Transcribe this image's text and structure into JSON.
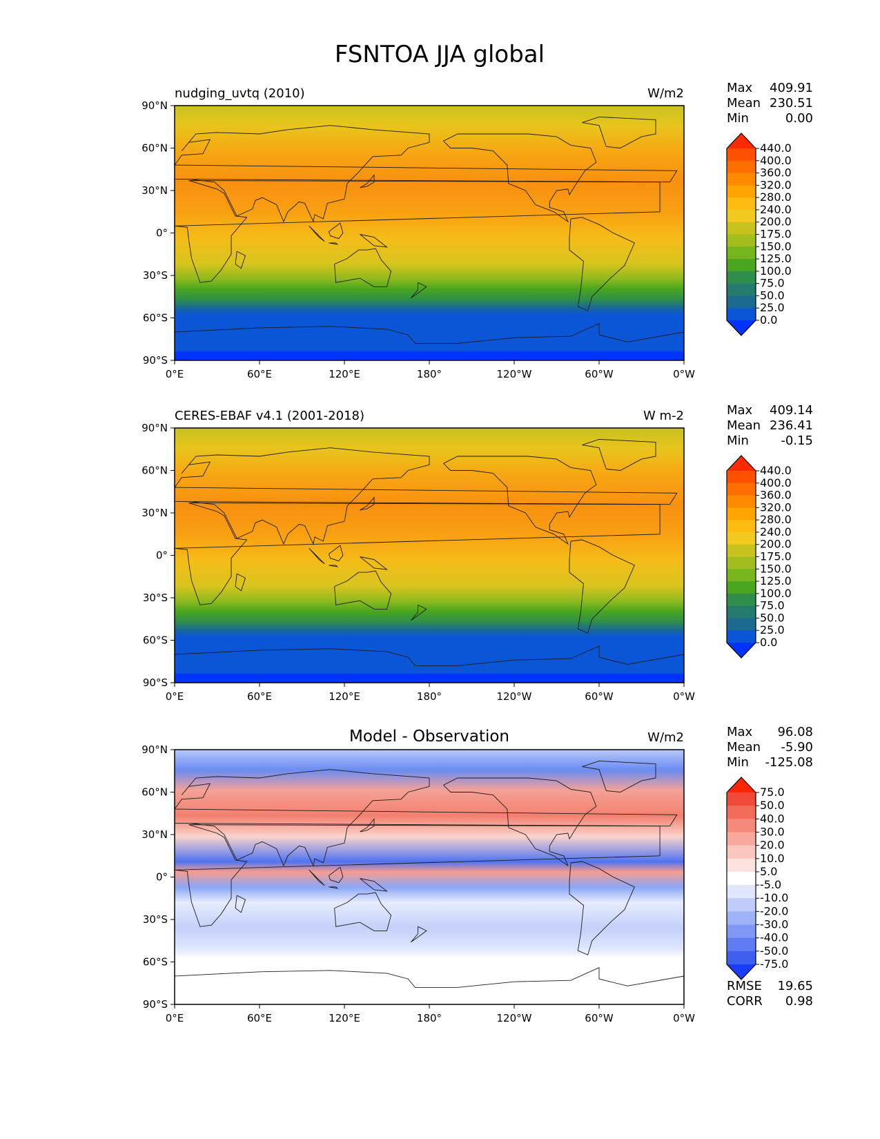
{
  "figure": {
    "title": "FSNTOA JJA global"
  },
  "axes": {
    "lat_ticks": [
      "90°N",
      "60°N",
      "30°N",
      "0°",
      "30°S",
      "60°S",
      "90°S"
    ],
    "lon_ticks": [
      "0°E",
      "60°E",
      "120°E",
      "180°",
      "120°W",
      "60°W",
      "0°W"
    ]
  },
  "panels": [
    {
      "id": "model",
      "left_title": "nudging_uvtq (2010)",
      "center_title": "",
      "units": "W/m2",
      "stats": [
        {
          "label": "Max",
          "value": "409.91"
        },
        {
          "label": "Mean",
          "value": "230.51"
        },
        {
          "label": "Min",
          "value": "0.00"
        }
      ],
      "colorbar": {
        "levels": [
          "440.0",
          "400.0",
          "360.0",
          "320.0",
          "280.0",
          "240.0",
          "200.0",
          "175.0",
          "150.0",
          "125.0",
          "100.0",
          "75.0",
          "50.0",
          "25.0",
          "0.0"
        ],
        "colors": [
          "#ff2a00",
          "#ff4f00",
          "#ff6e00",
          "#ff8a00",
          "#ffa400",
          "#ffbc10",
          "#f2c91e",
          "#c8c21e",
          "#a3bd1e",
          "#76b51e",
          "#4aa61e",
          "#2f8f4a",
          "#257a6e",
          "#1c6b8e",
          "#0a56d6",
          "#0033ff"
        ]
      },
      "extra": []
    },
    {
      "id": "obs",
      "left_title": "CERES-EBAF v4.1 (2001-2018)",
      "center_title": "",
      "units": "W m-2",
      "stats": [
        {
          "label": "Max",
          "value": "409.14"
        },
        {
          "label": "Mean",
          "value": "236.41"
        },
        {
          "label": "Min",
          "value": "-0.15"
        }
      ],
      "colorbar": {
        "levels": [
          "440.0",
          "400.0",
          "360.0",
          "320.0",
          "280.0",
          "240.0",
          "200.0",
          "175.0",
          "150.0",
          "125.0",
          "100.0",
          "75.0",
          "50.0",
          "25.0",
          "0.0"
        ],
        "colors": [
          "#ff2a00",
          "#ff4f00",
          "#ff6e00",
          "#ff8a00",
          "#ffa400",
          "#ffbc10",
          "#f2c91e",
          "#c8c21e",
          "#a3bd1e",
          "#76b51e",
          "#4aa61e",
          "#2f8f4a",
          "#257a6e",
          "#1c6b8e",
          "#0a56d6",
          "#0033ff"
        ]
      },
      "extra": []
    },
    {
      "id": "diff",
      "left_title": "",
      "center_title": "Model - Observation",
      "units": "W/m2",
      "stats": [
        {
          "label": "Max",
          "value": "96.08"
        },
        {
          "label": "Mean",
          "value": "-5.90"
        },
        {
          "label": "Min",
          "value": "-125.08"
        }
      ],
      "colorbar": {
        "levels": [
          "75.0",
          "50.0",
          "40.0",
          "30.0",
          "20.0",
          "10.0",
          "5.0",
          "-5.0",
          "-10.0",
          "-20.0",
          "-30.0",
          "-40.0",
          "-50.0",
          "-75.0"
        ],
        "colors": [
          "#ff2600",
          "#f24a3a",
          "#f26a5a",
          "#f5897b",
          "#f8a89d",
          "#fbc6be",
          "#fde2de",
          "#ffffff",
          "#dfe6fd",
          "#c0cdfb",
          "#9fb2f8",
          "#7f97f5",
          "#5f7cf2",
          "#3f5ff0",
          "#1a3cff"
        ]
      },
      "extra": [
        {
          "label": "RMSE",
          "value": "19.65"
        },
        {
          "label": "CORR",
          "value": "0.98"
        }
      ]
    }
  ]
}
